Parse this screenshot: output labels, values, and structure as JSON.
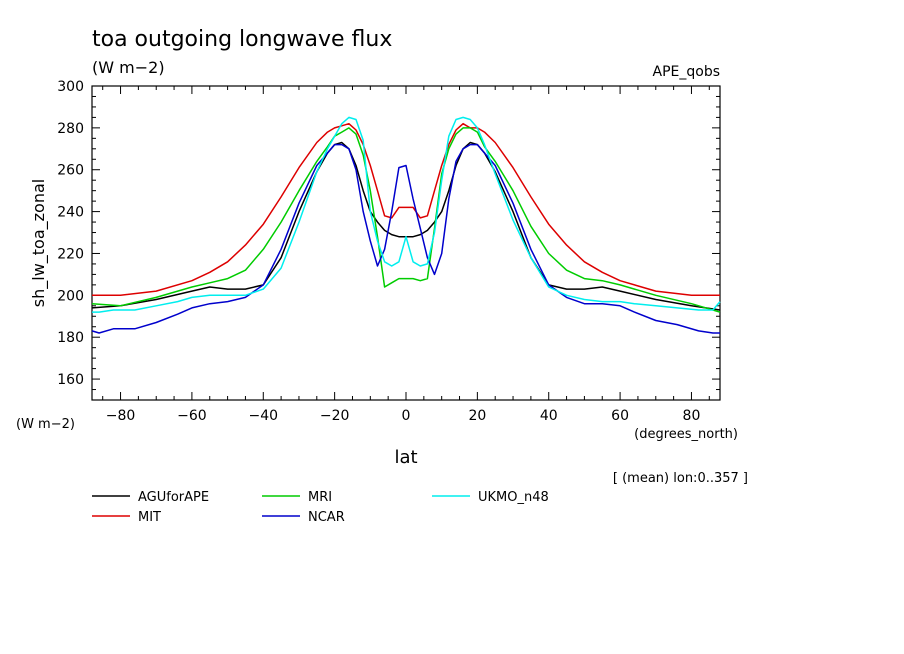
{
  "header": {
    "title": "toa outgoing longwave flux",
    "units": "(W m−2)",
    "experiment": "APE_qobs"
  },
  "footer": {
    "mean_note": "[ (mean) lon:0..357 ]"
  },
  "chart_data": {
    "type": "line",
    "title": "toa outgoing longwave flux",
    "ylabel": "sh_lw_toa_zonal",
    "yunits": "(W m−2)",
    "xlabel": "lat",
    "xunits": "(degrees_north)",
    "xlim": [
      -88,
      88
    ],
    "ylim": [
      150,
      300
    ],
    "xticks": [
      -80,
      -60,
      -40,
      -20,
      0,
      20,
      40,
      60,
      80
    ],
    "yticks": [
      160,
      180,
      200,
      220,
      240,
      260,
      280,
      300
    ],
    "legend_position": "bottom",
    "grid": false,
    "series": [
      {
        "name": "AGUforAPE",
        "color": "#000000",
        "x": [
          -88,
          -80,
          -70,
          -60,
          -55,
          -50,
          -45,
          -40,
          -35,
          -30,
          -25,
          -22,
          -20,
          -18,
          -16,
          -14,
          -12,
          -10,
          -8,
          -6,
          -4,
          -2,
          0,
          2,
          4,
          6,
          8,
          10,
          12,
          14,
          16,
          18,
          20,
          22,
          25,
          30,
          35,
          40,
          45,
          50,
          55,
          60,
          70,
          80,
          88
        ],
        "y": [
          194,
          195,
          198,
          202,
          204,
          203,
          203,
          205,
          218,
          240,
          259,
          268,
          272,
          273,
          270,
          262,
          250,
          240,
          235,
          231,
          229,
          228,
          228,
          228,
          229,
          231,
          235,
          240,
          250,
          262,
          270,
          273,
          272,
          268,
          259,
          240,
          218,
          205,
          203,
          203,
          204,
          202,
          198,
          195,
          193
        ]
      },
      {
        "name": "MIT",
        "color": "#dd0000",
        "x": [
          -88,
          -80,
          -70,
          -60,
          -55,
          -50,
          -45,
          -40,
          -35,
          -30,
          -25,
          -22,
          -20,
          -18,
          -16,
          -14,
          -12,
          -10,
          -8,
          -6,
          -4,
          -2,
          0,
          2,
          4,
          6,
          8,
          10,
          12,
          14,
          16,
          18,
          20,
          22,
          25,
          30,
          35,
          40,
          45,
          50,
          55,
          60,
          70,
          80,
          88
        ],
        "y": [
          200,
          200,
          202,
          207,
          211,
          216,
          224,
          234,
          247,
          261,
          273,
          278,
          280,
          281,
          282,
          279,
          272,
          262,
          250,
          238,
          237,
          242,
          242,
          242,
          237,
          238,
          250,
          262,
          272,
          279,
          282,
          280,
          280,
          278,
          273,
          261,
          247,
          234,
          224,
          216,
          211,
          207,
          202,
          200,
          200
        ]
      },
      {
        "name": "MRI",
        "color": "#00cc00",
        "x": [
          -88,
          -80,
          -70,
          -60,
          -55,
          -50,
          -45,
          -40,
          -35,
          -30,
          -25,
          -22,
          -20,
          -18,
          -16,
          -14,
          -12,
          -10,
          -8,
          -6,
          -4,
          -2,
          0,
          2,
          4,
          6,
          8,
          10,
          12,
          14,
          16,
          18,
          20,
          22,
          25,
          30,
          35,
          40,
          45,
          50,
          55,
          60,
          70,
          80,
          88
        ],
        "y": [
          196,
          195,
          199,
          204,
          206,
          208,
          212,
          222,
          235,
          250,
          264,
          271,
          276,
          278,
          280,
          277,
          267,
          250,
          228,
          204,
          206,
          208,
          208,
          208,
          207,
          208,
          232,
          258,
          270,
          277,
          280,
          280,
          278,
          271,
          264,
          250,
          233,
          220,
          212,
          208,
          207,
          205,
          200,
          196,
          192
        ]
      },
      {
        "name": "NCAR",
        "color": "#0000cc",
        "x": [
          -88,
          -86,
          -82,
          -76,
          -70,
          -64,
          -60,
          -55,
          -50,
          -45,
          -40,
          -35,
          -30,
          -25,
          -22,
          -20,
          -18,
          -16,
          -14,
          -12,
          -10,
          -8,
          -6,
          -4,
          -2,
          0,
          2,
          4,
          6,
          8,
          10,
          12,
          14,
          16,
          18,
          20,
          22,
          25,
          30,
          35,
          40,
          45,
          50,
          55,
          60,
          64,
          70,
          76,
          82,
          86,
          88
        ],
        "y": [
          183,
          182,
          184,
          184,
          187,
          191,
          194,
          196,
          197,
          199,
          205,
          222,
          244,
          262,
          268,
          272,
          272,
          270,
          260,
          240,
          226,
          214,
          222,
          240,
          261,
          262,
          246,
          232,
          218,
          210,
          220,
          246,
          264,
          270,
          272,
          272,
          268,
          262,
          244,
          222,
          205,
          199,
          196,
          196,
          195,
          192,
          188,
          186,
          183,
          182,
          182
        ]
      },
      {
        "name": "UKMO_n48",
        "color": "#00eeee",
        "x": [
          -88,
          -86,
          -82,
          -76,
          -70,
          -64,
          -60,
          -55,
          -50,
          -45,
          -40,
          -35,
          -30,
          -25,
          -22,
          -20,
          -18,
          -16,
          -14,
          -12,
          -10,
          -8,
          -6,
          -4,
          -2,
          0,
          2,
          4,
          6,
          8,
          10,
          12,
          14,
          16,
          18,
          20,
          22,
          25,
          30,
          35,
          40,
          45,
          50,
          55,
          60,
          64,
          70,
          76,
          82,
          86,
          88
        ],
        "y": [
          192,
          192,
          193,
          193,
          195,
          197,
          199,
          200,
          200,
          200,
          203,
          213,
          235,
          259,
          270,
          276,
          282,
          285,
          284,
          274,
          240,
          226,
          216,
          214,
          216,
          228,
          216,
          214,
          215,
          230,
          255,
          276,
          284,
          285,
          284,
          280,
          272,
          258,
          236,
          218,
          204,
          200,
          198,
          197,
          197,
          196,
          195,
          194,
          193,
          193,
          197
        ]
      }
    ]
  }
}
